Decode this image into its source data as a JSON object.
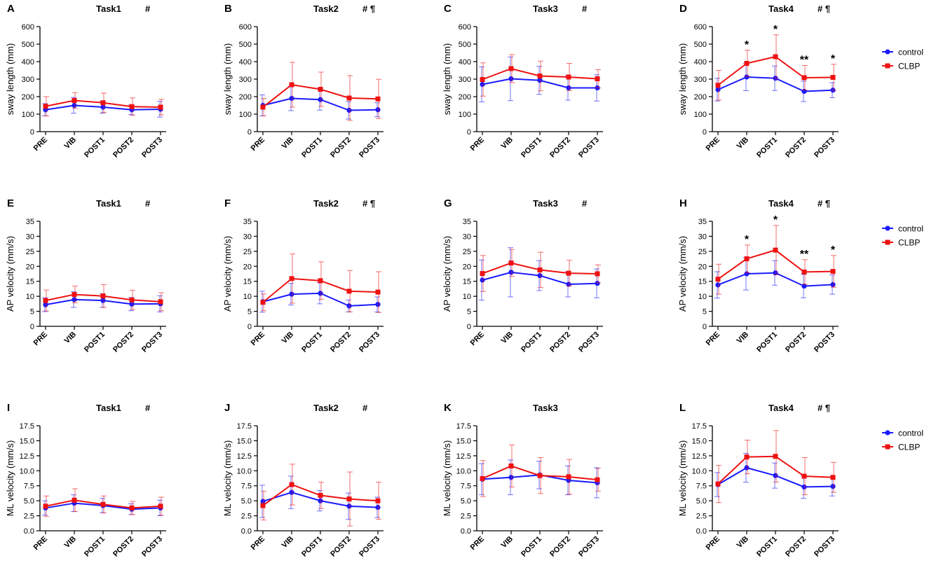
{
  "colors": {
    "control": "#1a1aff",
    "clbp": "#ee1111",
    "axis": "#000000"
  },
  "legend": {
    "control_label": "control",
    "clbp_label": "CLBP"
  },
  "chart_data": [
    {
      "type": "line",
      "letter": "A",
      "title": "Task1",
      "marks": "#",
      "ylabel": "sway length (mm)",
      "ylim": [
        0,
        600
      ],
      "yticks": [
        "0",
        "100",
        "200",
        "300",
        "400",
        "500",
        "600"
      ],
      "categories": [
        "PRE",
        "VIB",
        "POST1",
        "POST2",
        "POST3"
      ],
      "series": [
        {
          "name": "control",
          "values": [
            125,
            150,
            140,
            125,
            128
          ],
          "err": [
            35,
            45,
            35,
            28,
            45
          ]
        },
        {
          "name": "CLBP",
          "values": [
            145,
            178,
            165,
            143,
            140
          ],
          "err": [
            55,
            45,
            55,
            50,
            45
          ]
        }
      ],
      "annotations": [
        "",
        "",
        "",
        "",
        ""
      ]
    },
    {
      "type": "line",
      "letter": "B",
      "title": "Task2",
      "marks": "# ¶",
      "ylabel": "sway length (mm)",
      "ylim": [
        0,
        600
      ],
      "yticks": [
        "0",
        "100",
        "200",
        "300",
        "400",
        "500",
        "600"
      ],
      "categories": [
        "PRE",
        "VIB",
        "POST1",
        "POST2",
        "POST3"
      ],
      "series": [
        {
          "name": "control",
          "values": [
            150,
            190,
            183,
            122,
            125
          ],
          "err": [
            60,
            70,
            60,
            50,
            40
          ]
        },
        {
          "name": "CLBP",
          "values": [
            140,
            268,
            242,
            192,
            187
          ],
          "err": [
            50,
            128,
            98,
            128,
            112
          ]
        }
      ],
      "annotations": [
        "",
        "",
        "",
        "",
        ""
      ]
    },
    {
      "type": "line",
      "letter": "C",
      "title": "Task3",
      "marks": "#",
      "ylabel": "sway length (mm)",
      "ylim": [
        0,
        600
      ],
      "yticks": [
        "0",
        "100",
        "200",
        "300",
        "400",
        "500",
        "600"
      ],
      "categories": [
        "PRE",
        "VIB",
        "POST1",
        "POST2",
        "POST3"
      ],
      "series": [
        {
          "name": "control",
          "values": [
            270,
            302,
            293,
            250,
            250
          ],
          "err": [
            100,
            125,
            80,
            70,
            75
          ]
        },
        {
          "name": "CLBP",
          "values": [
            298,
            360,
            318,
            312,
            302
          ],
          "err": [
            95,
            80,
            85,
            78,
            52
          ]
        }
      ],
      "annotations": [
        "",
        "",
        "",
        "",
        ""
      ]
    },
    {
      "type": "line",
      "letter": "D",
      "title": "Task4",
      "marks": "# ¶",
      "ylabel": "sway length (mm)",
      "ylim": [
        0,
        600
      ],
      "yticks": [
        "0",
        "100",
        "200",
        "300",
        "400",
        "500",
        "600"
      ],
      "categories": [
        "PRE",
        "VIB",
        "POST1",
        "POST2",
        "POST3"
      ],
      "series": [
        {
          "name": "control",
          "values": [
            240,
            312,
            305,
            230,
            237
          ],
          "err": [
            65,
            78,
            70,
            58,
            43
          ]
        },
        {
          "name": "CLBP",
          "values": [
            265,
            390,
            428,
            308,
            310
          ],
          "err": [
            85,
            75,
            125,
            70,
            75
          ]
        }
      ],
      "annotations": [
        "",
        "*",
        "*",
        "**",
        "*"
      ]
    },
    {
      "type": "line",
      "letter": "E",
      "title": "Task1",
      "marks": "#",
      "ylabel": "AP velocity (mm/s)",
      "ylim": [
        0,
        35
      ],
      "yticks": [
        "0",
        "5",
        "10",
        "15",
        "20",
        "25",
        "30",
        "35"
      ],
      "categories": [
        "PRE",
        "VIB",
        "POST1",
        "POST2",
        "POST3"
      ],
      "series": [
        {
          "name": "control",
          "values": [
            7.2,
            8.9,
            8.6,
            7.4,
            7.5
          ],
          "err": [
            2.3,
            2.6,
            2.3,
            2.2,
            2.7
          ]
        },
        {
          "name": "CLBP",
          "values": [
            8.6,
            10.6,
            10.1,
            8.8,
            8.2
          ],
          "err": [
            3.5,
            2.8,
            3.8,
            3.2,
            3.0
          ]
        }
      ],
      "annotations": [
        "",
        "",
        "",
        "",
        ""
      ]
    },
    {
      "type": "line",
      "letter": "F",
      "title": "Task2",
      "marks": "# ¶",
      "ylabel": "AP velocity (mm/s)",
      "ylim": [
        0,
        35
      ],
      "yticks": [
        "0",
        "5",
        "10",
        "15",
        "20",
        "25",
        "30",
        "35"
      ],
      "categories": [
        "PRE",
        "VIB",
        "POST1",
        "POST2",
        "POST3"
      ],
      "series": [
        {
          "name": "control",
          "values": [
            8.2,
            10.7,
            11.0,
            6.8,
            7.3
          ],
          "err": [
            3.5,
            3.6,
            3.5,
            2.0,
            2.5
          ]
        },
        {
          "name": "CLBP",
          "values": [
            8.0,
            15.9,
            15.2,
            11.7,
            11.4
          ],
          "err": [
            2.8,
            8.2,
            6.3,
            6.9,
            6.8
          ]
        }
      ],
      "annotations": [
        "",
        "",
        "",
        "",
        ""
      ]
    },
    {
      "type": "line",
      "letter": "G",
      "title": "Task3",
      "marks": "#",
      "ylabel": "AP velocity (mm/s)",
      "ylim": [
        0,
        35
      ],
      "yticks": [
        "0",
        "5",
        "10",
        "15",
        "20",
        "25",
        "30",
        "35"
      ],
      "categories": [
        "PRE",
        "VIB",
        "POST1",
        "POST2",
        "POST3"
      ],
      "series": [
        {
          "name": "control",
          "values": [
            15.4,
            18.0,
            16.9,
            14.0,
            14.3
          ],
          "err": [
            6.7,
            8.2,
            5.0,
            4.2,
            4.8
          ]
        },
        {
          "name": "CLBP",
          "values": [
            17.6,
            21.1,
            18.8,
            17.7,
            17.5
          ],
          "err": [
            6.0,
            4.5,
            5.9,
            4.3,
            3.0
          ]
        }
      ],
      "annotations": [
        "",
        "",
        "",
        "",
        ""
      ]
    },
    {
      "type": "line",
      "letter": "H",
      "title": "Task4",
      "marks": "# ¶",
      "ylabel": "AP velocity (mm/s)",
      "ylim": [
        0,
        35
      ],
      "yticks": [
        "0",
        "5",
        "10",
        "15",
        "20",
        "25",
        "30",
        "35"
      ],
      "categories": [
        "PRE",
        "VIB",
        "POST1",
        "POST2",
        "POST3"
      ],
      "series": [
        {
          "name": "control",
          "values": [
            13.8,
            17.5,
            17.8,
            13.4,
            13.9
          ],
          "err": [
            4.4,
            5.4,
            4.1,
            3.9,
            3.2
          ]
        },
        {
          "name": "CLBP",
          "values": [
            15.7,
            22.5,
            25.4,
            18.1,
            18.3
          ],
          "err": [
            5.0,
            4.6,
            8.2,
            4.1,
            5.3
          ]
        }
      ],
      "annotations": [
        "",
        "*",
        "*",
        "**",
        "*"
      ]
    },
    {
      "type": "line",
      "letter": "I",
      "title": "Task1",
      "marks": "#",
      "ylabel": "ML velocity (mm/s)",
      "ylim": [
        0,
        17.5
      ],
      "yticks": [
        "0.0",
        "2.5",
        "5.0",
        "7.5",
        "10.0",
        "12.5",
        "15.0",
        "17.5"
      ],
      "categories": [
        "PRE",
        "VIB",
        "POST1",
        "POST2",
        "POST3"
      ],
      "series": [
        {
          "name": "control",
          "values": [
            3.8,
            4.6,
            4.2,
            3.6,
            3.8
          ],
          "err": [
            1.2,
            1.4,
            1.2,
            0.9,
            1.3
          ]
        },
        {
          "name": "CLBP",
          "values": [
            4.1,
            5.1,
            4.4,
            3.8,
            4.1
          ],
          "err": [
            1.7,
            1.9,
            1.4,
            1.1,
            1.5
          ]
        }
      ],
      "annotations": [
        "",
        "",
        "",
        "",
        ""
      ]
    },
    {
      "type": "line",
      "letter": "J",
      "title": "Task2",
      "marks": "#",
      "ylabel": "ML velocity (mm/s)",
      "ylim": [
        0,
        17.5
      ],
      "yticks": [
        "0.0",
        "2.5",
        "5.0",
        "7.5",
        "10.0",
        "12.5",
        "15.0",
        "17.5"
      ],
      "categories": [
        "PRE",
        "VIB",
        "POST1",
        "POST2",
        "POST3"
      ],
      "series": [
        {
          "name": "control",
          "values": [
            4.9,
            6.4,
            5.0,
            4.1,
            3.9
          ],
          "err": [
            2.7,
            2.7,
            1.7,
            2.2,
            1.7
          ]
        },
        {
          "name": "CLBP",
          "values": [
            4.2,
            7.7,
            5.9,
            5.3,
            5.0
          ],
          "err": [
            2.4,
            3.4,
            2.2,
            4.5,
            3.1
          ]
        }
      ],
      "annotations": [
        "",
        "",
        "",
        "",
        ""
      ]
    },
    {
      "type": "line",
      "letter": "K",
      "title": "Task3",
      "marks": "",
      "ylabel": "ML velocity (mm/s)",
      "ylim": [
        0,
        17.5
      ],
      "yticks": [
        "0.0",
        "2.5",
        "5.0",
        "7.5",
        "10.0",
        "12.5",
        "15.0",
        "17.5"
      ],
      "categories": [
        "PRE",
        "VIB",
        "POST1",
        "POST2",
        "POST3"
      ],
      "series": [
        {
          "name": "control",
          "values": [
            8.6,
            8.9,
            9.3,
            8.4,
            8.0
          ],
          "err": [
            2.6,
            2.9,
            2.3,
            2.4,
            2.5
          ]
        },
        {
          "name": "CLBP",
          "values": [
            8.7,
            10.8,
            9.2,
            9.0,
            8.5
          ],
          "err": [
            3.0,
            3.5,
            3.0,
            2.9,
            1.9
          ]
        }
      ],
      "annotations": [
        "",
        "",
        "",
        "",
        ""
      ]
    },
    {
      "type": "line",
      "letter": "L",
      "title": "Task4",
      "marks": "# ¶",
      "ylabel": "ML velocity (mm/s)",
      "ylim": [
        0,
        17.5
      ],
      "yticks": [
        "0.0",
        "2.5",
        "5.0",
        "7.5",
        "10.0",
        "12.5",
        "15.0",
        "17.5"
      ],
      "categories": [
        "PRE",
        "VIB",
        "POST1",
        "POST2",
        "POST3"
      ],
      "series": [
        {
          "name": "control",
          "values": [
            7.7,
            10.5,
            9.2,
            7.3,
            7.4
          ],
          "err": [
            2.0,
            2.4,
            2.1,
            1.9,
            1.6
          ]
        },
        {
          "name": "CLBP",
          "values": [
            7.8,
            12.3,
            12.4,
            9.1,
            8.9
          ],
          "err": [
            3.1,
            2.8,
            4.3,
            3.1,
            2.5
          ]
        }
      ],
      "annotations": [
        "",
        "",
        "",
        "",
        ""
      ]
    }
  ]
}
